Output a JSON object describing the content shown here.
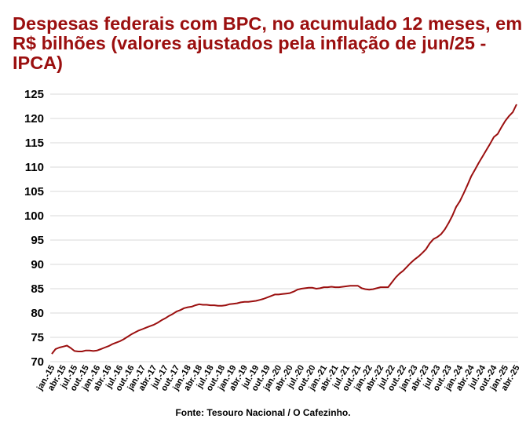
{
  "chart_data": {
    "type": "line",
    "title": "Despesas federais com BPC, no acumulado 12 meses, em R$ bilhões (valores ajustados pela inflação de jun/25 - IPCA)",
    "source": "Fonte: Tesouro Nacional / O Cafezinho.",
    "xlabel": "",
    "ylabel": "",
    "ylim": [
      70,
      125
    ],
    "yticks": [
      "70",
      "75",
      "80",
      "85",
      "90",
      "95",
      "100",
      "105",
      "110",
      "115",
      "120",
      "125"
    ],
    "grid": true,
    "legend": "none",
    "line_color": "#9b0f0f",
    "x_tick_labels": [
      "jan.-15",
      "abr.-15",
      "jul.-15",
      "out.-15",
      "jan.-16",
      "abr.-16",
      "jul.-16",
      "out.-16",
      "jan.-17",
      "abr.-17",
      "jul.-17",
      "out.-17",
      "jan.-18",
      "abr.-18",
      "jul.-18",
      "out.-18",
      "jan.-19",
      "abr.-19",
      "jul.-19",
      "out.-19",
      "jan.-20",
      "abr.-20",
      "jul.-20",
      "out.-20",
      "jan.-21",
      "abr.-21",
      "jul.-21",
      "out.-21",
      "jan.-22",
      "abr.-22",
      "jul.-22",
      "out.-22",
      "jan.-23",
      "abr.-23",
      "jul.-23",
      "out.-23",
      "jan.-24",
      "abr.-24",
      "jul.-24",
      "out.-24",
      "jan.-25",
      "abr.-25"
    ],
    "series": [
      {
        "values": [
          71.6,
          72.6,
          72.9,
          73.1,
          73.3,
          72.8,
          72.2,
          72.1,
          72.1,
          72.3,
          72.3,
          72.2,
          72.3,
          72.6,
          72.9,
          73.2,
          73.6,
          73.9,
          74.2,
          74.6,
          75.1,
          75.6,
          76.0,
          76.4,
          76.7,
          77.0,
          77.3,
          77.6,
          78.0,
          78.5,
          78.9,
          79.4,
          79.8,
          80.3,
          80.6,
          81.0,
          81.2,
          81.3,
          81.6,
          81.8,
          81.7,
          81.7,
          81.6,
          81.6,
          81.5,
          81.5,
          81.6,
          81.8,
          81.9,
          82.0,
          82.2,
          82.3,
          82.3,
          82.4,
          82.5,
          82.7,
          82.9,
          83.2,
          83.5,
          83.8,
          83.8,
          83.9,
          84.0,
          84.1,
          84.4,
          84.8,
          85.0,
          85.1,
          85.2,
          85.2,
          85.0,
          85.1,
          85.3,
          85.3,
          85.4,
          85.3,
          85.3,
          85.4,
          85.5,
          85.6,
          85.6,
          85.6,
          85.1,
          84.9,
          84.8,
          84.9,
          85.1,
          85.3,
          85.3,
          85.3,
          86.3,
          87.3,
          88.1,
          88.7,
          89.5,
          90.3,
          91.0,
          91.6,
          92.3,
          93.1,
          94.3,
          95.2,
          95.6,
          96.2,
          97.2,
          98.5,
          100.0,
          101.8,
          103.0,
          104.6,
          106.3,
          108.1,
          109.5,
          110.9,
          112.2,
          113.5,
          114.8,
          116.2,
          116.8,
          118.2,
          119.5,
          120.5,
          121.3,
          122.9
        ]
      }
    ]
  }
}
